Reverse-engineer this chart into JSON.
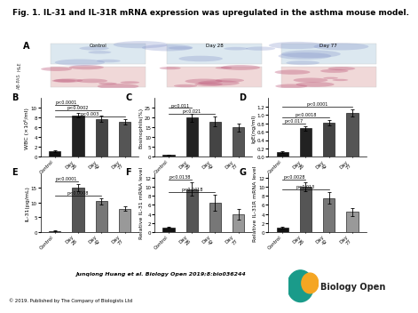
{
  "title": "Fig. 1. IL-31 and IL-31R mRNA expression was upregulated in the asthma mouse model.",
  "title_fontsize": 6.5,
  "citation": "Junqiong Huang et al. Biology Open 2019;8:bio036244",
  "copyright": "© 2019. Published by The Company of Biologists Ltd",
  "panel_B": {
    "ylabel": "WBC (×10⁶/ml)",
    "values": [
      1.2,
      8.5,
      7.8,
      7.2
    ],
    "errors": [
      0.2,
      0.5,
      0.6,
      0.5
    ],
    "colors": [
      "#111111",
      "#222222",
      "#444444",
      "#555555"
    ],
    "ylim": [
      0,
      12
    ],
    "yticks": [
      0,
      2,
      4,
      6,
      8,
      10
    ],
    "pvalues": [
      [
        "p<0.0001",
        0,
        1
      ],
      [
        "p<0.0002",
        0,
        2
      ],
      [
        "p<0.003",
        0,
        3
      ]
    ]
  },
  "panel_C": {
    "ylabel": "Eosinophils(%)",
    "values": [
      1.0,
      20.0,
      18.0,
      15.0
    ],
    "errors": [
      0.3,
      2.0,
      2.5,
      2.0
    ],
    "colors": [
      "#111111",
      "#222222",
      "#444444",
      "#555555"
    ],
    "ylim": [
      0,
      30
    ],
    "yticks": [
      0,
      5,
      10,
      15,
      20,
      25
    ],
    "pvalues": [
      [
        "p<0.011",
        0,
        1
      ],
      [
        "p<0.021",
        0,
        2
      ]
    ]
  },
  "panel_D": {
    "ylabel": "IgE(ng/ml)",
    "values": [
      0.12,
      0.68,
      0.82,
      1.05
    ],
    "errors": [
      0.02,
      0.05,
      0.06,
      0.08
    ],
    "colors": [
      "#111111",
      "#222222",
      "#444444",
      "#555555"
    ],
    "ylim": [
      0,
      1.4
    ],
    "yticks": [
      0,
      0.2,
      0.4,
      0.6,
      0.8,
      1.0,
      1.2
    ],
    "pvalues": [
      [
        "p<0.0001",
        0,
        3
      ],
      [
        "p<0.0018",
        0,
        2
      ],
      [
        "p<0.017",
        0,
        1
      ]
    ]
  },
  "panel_E": {
    "ylabel": "IL-31(pg/mL)",
    "values": [
      0.4,
      15.0,
      10.5,
      8.0
    ],
    "errors": [
      0.08,
      1.2,
      1.0,
      0.8
    ],
    "colors": [
      "#111111",
      "#555555",
      "#777777",
      "#999999"
    ],
    "ylim": [
      0,
      20
    ],
    "yticks": [
      0,
      5,
      10,
      15
    ],
    "pvalues": [
      [
        "p<0.0001",
        0,
        1
      ],
      [
        "p<0.0008",
        0,
        2
      ]
    ]
  },
  "panel_F": {
    "ylabel": "Relative IL-31 mRNA level",
    "values": [
      1.0,
      9.5,
      6.5,
      4.0
    ],
    "errors": [
      0.1,
      1.5,
      1.8,
      1.2
    ],
    "colors": [
      "#111111",
      "#555555",
      "#777777",
      "#999999"
    ],
    "ylim": [
      0,
      13
    ],
    "yticks": [
      0,
      2,
      4,
      6,
      8,
      10,
      12
    ],
    "pvalues": [
      [
        "p<0.0138",
        0,
        1
      ],
      [
        "p<0.0418",
        0,
        2
      ]
    ]
  },
  "panel_G": {
    "ylabel": "Relative IL-31R mRNA level",
    "values": [
      1.0,
      10.0,
      7.5,
      4.5
    ],
    "errors": [
      0.15,
      1.0,
      1.3,
      0.9
    ],
    "colors": [
      "#111111",
      "#555555",
      "#777777",
      "#999999"
    ],
    "ylim": [
      0,
      13
    ],
    "yticks": [
      0,
      2,
      4,
      6,
      8,
      10,
      12
    ],
    "pvalues": [
      [
        "p<0.0028",
        0,
        1
      ],
      [
        "p<0.013",
        0,
        2
      ]
    ]
  },
  "bg_color": "#ffffff",
  "bar_width": 0.5,
  "tick_fontsize": 4.0,
  "label_fontsize": 4.5,
  "pval_fontsize": 3.5,
  "panel_label_fontsize": 7,
  "xticklabels": [
    "Control",
    "Day\n28",
    "Day\n42",
    "Day\n77"
  ]
}
